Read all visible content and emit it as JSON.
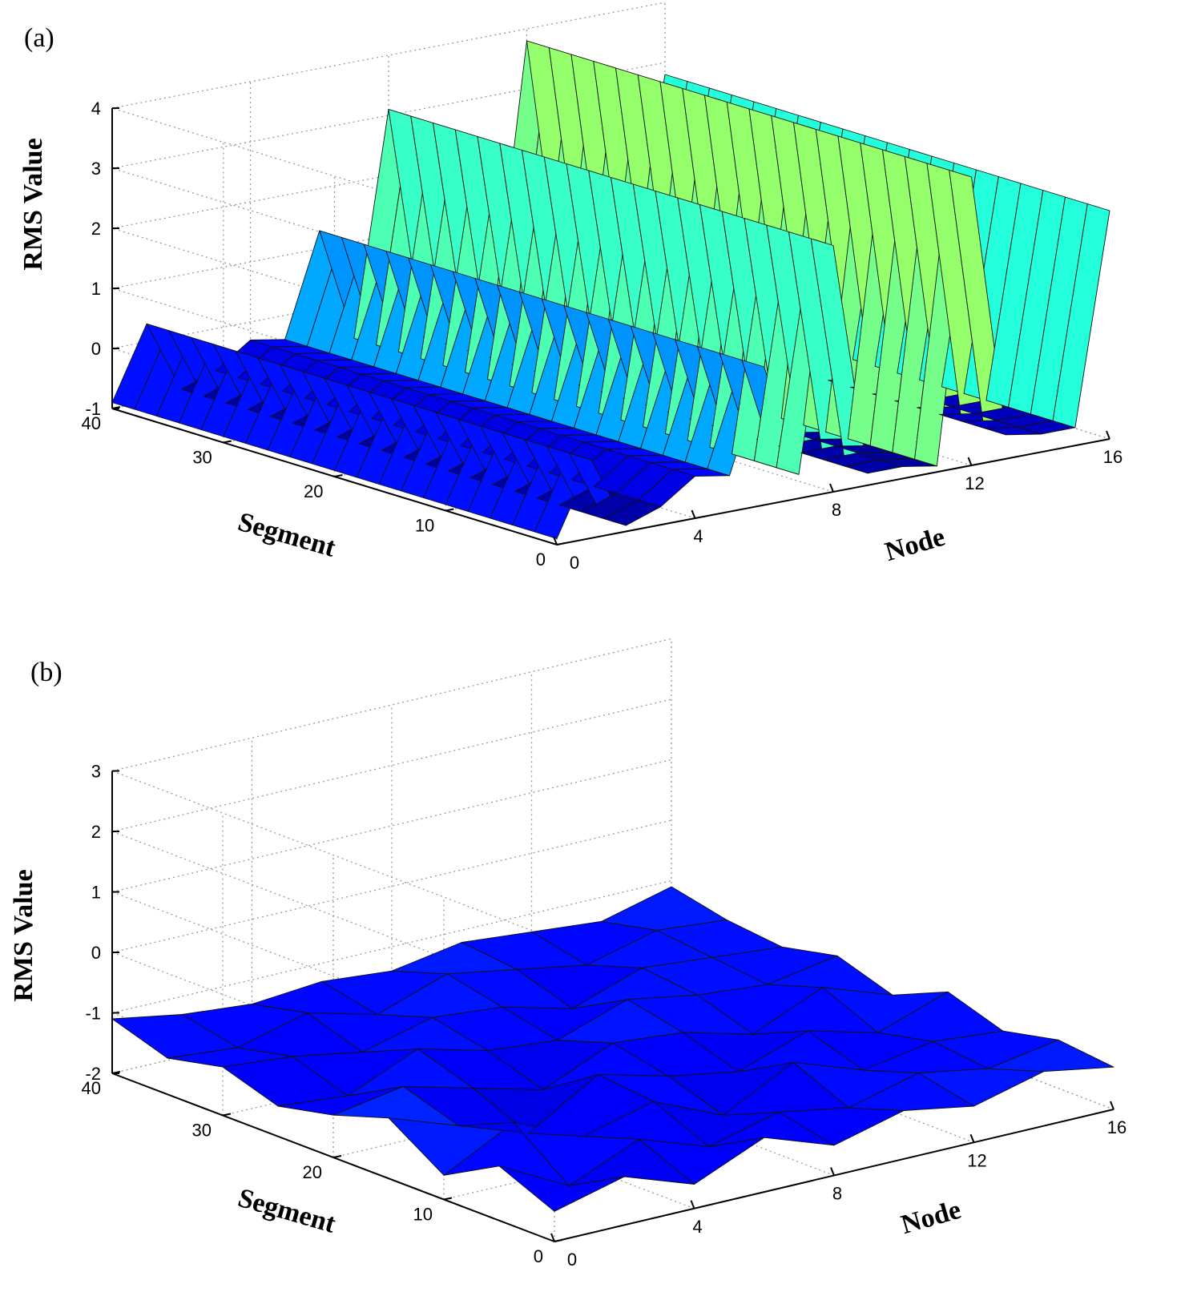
{
  "chart_data": [
    {
      "type": "surface3d",
      "panel_label": "(a)",
      "zlabel": "RMS Value",
      "xlabel": "Node",
      "ylabel": "Segment",
      "zlim": [
        -1,
        4
      ],
      "xlim": [
        0,
        16
      ],
      "ylim": [
        0,
        40
      ],
      "zticks": [
        "-1",
        "0",
        "1",
        "2",
        "3",
        "4"
      ],
      "xticks": [
        "0",
        "4",
        "8",
        "12",
        "16"
      ],
      "yticks": [
        "0",
        "10",
        "20",
        "30",
        "40"
      ],
      "grid": true,
      "nodes": [
        0,
        1,
        2,
        3,
        4,
        5,
        6,
        7,
        8,
        9,
        10,
        11,
        12,
        13,
        14,
        15,
        16
      ],
      "segments": [
        0,
        40
      ],
      "profile_by_node": [
        -0.9,
        0.3,
        -0.9,
        -0.7,
        -0.3,
        -0.4,
        1.3,
        -0.6,
        3.1,
        -0.8,
        -0.8,
        -0.9,
        3.8,
        -0.6,
        -0.7,
        -0.7,
        2.8
      ]
    },
    {
      "type": "surface3d",
      "panel_label": "(b)",
      "zlabel": "RMS Value",
      "xlabel": "Node",
      "ylabel": "Segment",
      "zlim": [
        -2,
        3
      ],
      "xlim": [
        0,
        16
      ],
      "ylim": [
        0,
        40
      ],
      "zticks": [
        "-2",
        "-1",
        "0",
        "1",
        "2",
        "3"
      ],
      "xticks": [
        "0",
        "4",
        "8",
        "12",
        "16"
      ],
      "yticks": [
        "0",
        "10",
        "20",
        "30",
        "40"
      ],
      "grid": true,
      "nodes": [
        0,
        2,
        4,
        6,
        8,
        10,
        12,
        14,
        16
      ],
      "segments": [
        0,
        5,
        10,
        15,
        20,
        25,
        30,
        35,
        40
      ],
      "z": [
        [
          -1.5,
          -1.2,
          -1.6,
          -1.1,
          -1.5,
          -1.2,
          -1.4,
          -1.1,
          -1.3
        ],
        [
          -1.1,
          -1.7,
          -1.2,
          -1.6,
          -1.3,
          -1.5,
          -1.2,
          -1.4,
          -1.2
        ],
        [
          -1.6,
          -1.0,
          -1.5,
          -1.2,
          -1.7,
          -1.1,
          -1.5,
          -1.3,
          -1.4
        ],
        [
          -1.0,
          -1.4,
          -1.8,
          -1.1,
          -1.4,
          -1.6,
          -1.2,
          -1.5,
          -1.1
        ],
        [
          -1.3,
          -1.1,
          -1.4,
          -1.7,
          -1.2,
          -1.3,
          -1.6,
          -1.1,
          -1.5
        ],
        [
          -1.5,
          -1.6,
          -1.1,
          -1.4,
          -1.5,
          -1.1,
          -1.3,
          -1.4,
          -1.2
        ],
        [
          -1.2,
          -1.3,
          -1.5,
          -1.2,
          -1.3,
          -1.6,
          -1.2,
          -1.3,
          -1.4
        ],
        [
          -1.4,
          -1.5,
          -1.2,
          -1.5,
          -1.1,
          -1.3,
          -1.5,
          -1.2,
          -1.3
        ],
        [
          -1.1,
          -1.3,
          -1.4,
          -1.3,
          -1.4,
          -1.2,
          -1.3,
          -1.4,
          -1.1
        ]
      ]
    }
  ]
}
